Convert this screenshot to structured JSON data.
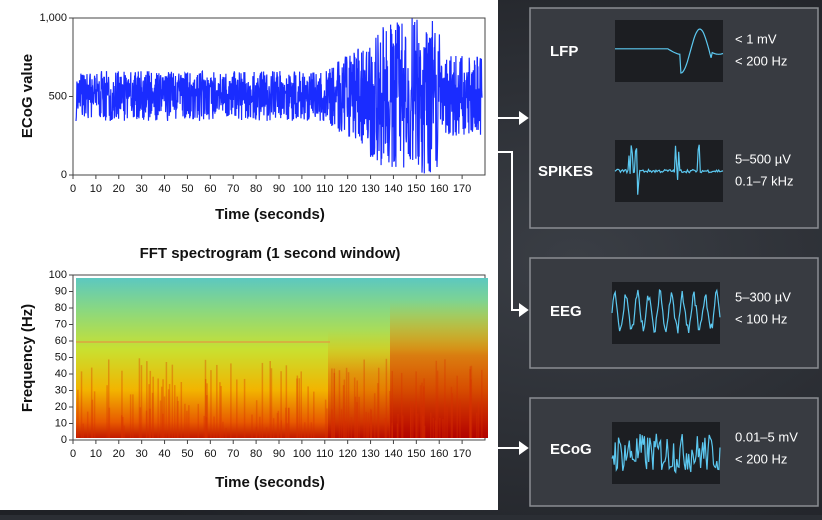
{
  "ecog_plot": {
    "y_label": "ECoG value",
    "x_label": "Time (seconds)",
    "xlim": [
      0,
      180
    ],
    "ylim": [
      0,
      1000
    ],
    "xticks": [
      0,
      10,
      20,
      30,
      40,
      50,
      60,
      70,
      80,
      90,
      100,
      110,
      120,
      130,
      140,
      150,
      160,
      170
    ],
    "yticks": [
      0,
      500,
      {
        "value": 1000,
        "label": "1,000"
      }
    ]
  },
  "spectrogram": {
    "title": "FFT spectrogram (1 second window)",
    "y_label": "Frequency (Hz)",
    "x_label": "Time (seconds)",
    "xlim": [
      0,
      180
    ],
    "ylim": [
      0,
      100
    ],
    "xticks": [
      0,
      10,
      20,
      30,
      40,
      50,
      60,
      70,
      80,
      90,
      100,
      110,
      120,
      130,
      140,
      150,
      160,
      170
    ],
    "yticks": [
      0,
      10,
      20,
      30,
      40,
      50,
      60,
      70,
      80,
      90,
      100
    ]
  },
  "signals": [
    {
      "label": "LFP",
      "amplitude": "< 1 mV",
      "frequency": "< 200 Hz"
    },
    {
      "label": "SPIKES",
      "amplitude": "5–500 µV",
      "frequency": "0.1–7 kHz"
    },
    {
      "label": "EEG",
      "amplitude": "5–300 µV",
      "frequency": "< 100 Hz"
    },
    {
      "label": "ECoG",
      "amplitude": "0.01–5 mV",
      "frequency": "< 200 Hz"
    }
  ]
}
